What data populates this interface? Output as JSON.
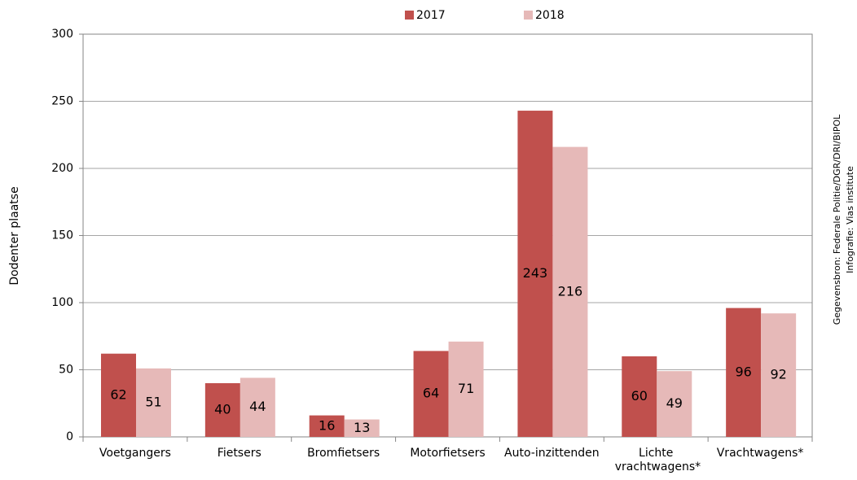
{
  "chart_data": {
    "type": "bar",
    "ylabel": "Dodenter plaatse",
    "source": "Gegevensbron: Federale Politie/DGR/DRI/BIPOL",
    "credit": "Infografie: Vias institute",
    "categories": [
      "Voetgangers",
      "Fietsers",
      "Bromfietsers",
      "Motorfietsers",
      "Auto-inzittenden",
      "Lichte vrachtwagens*",
      "Vrachtwagens*"
    ],
    "series": [
      {
        "name": "2017",
        "color": "#c0504d",
        "values": [
          62,
          40,
          16,
          64,
          243,
          60,
          96
        ]
      },
      {
        "name": "2018",
        "color": "#e6b9b8",
        "values": [
          51,
          44,
          13,
          71,
          216,
          49,
          92
        ]
      }
    ],
    "ylim": [
      0,
      300
    ],
    "yticks": [
      0,
      50,
      100,
      150,
      200,
      250,
      300
    ],
    "grid": true,
    "legend": "top"
  }
}
